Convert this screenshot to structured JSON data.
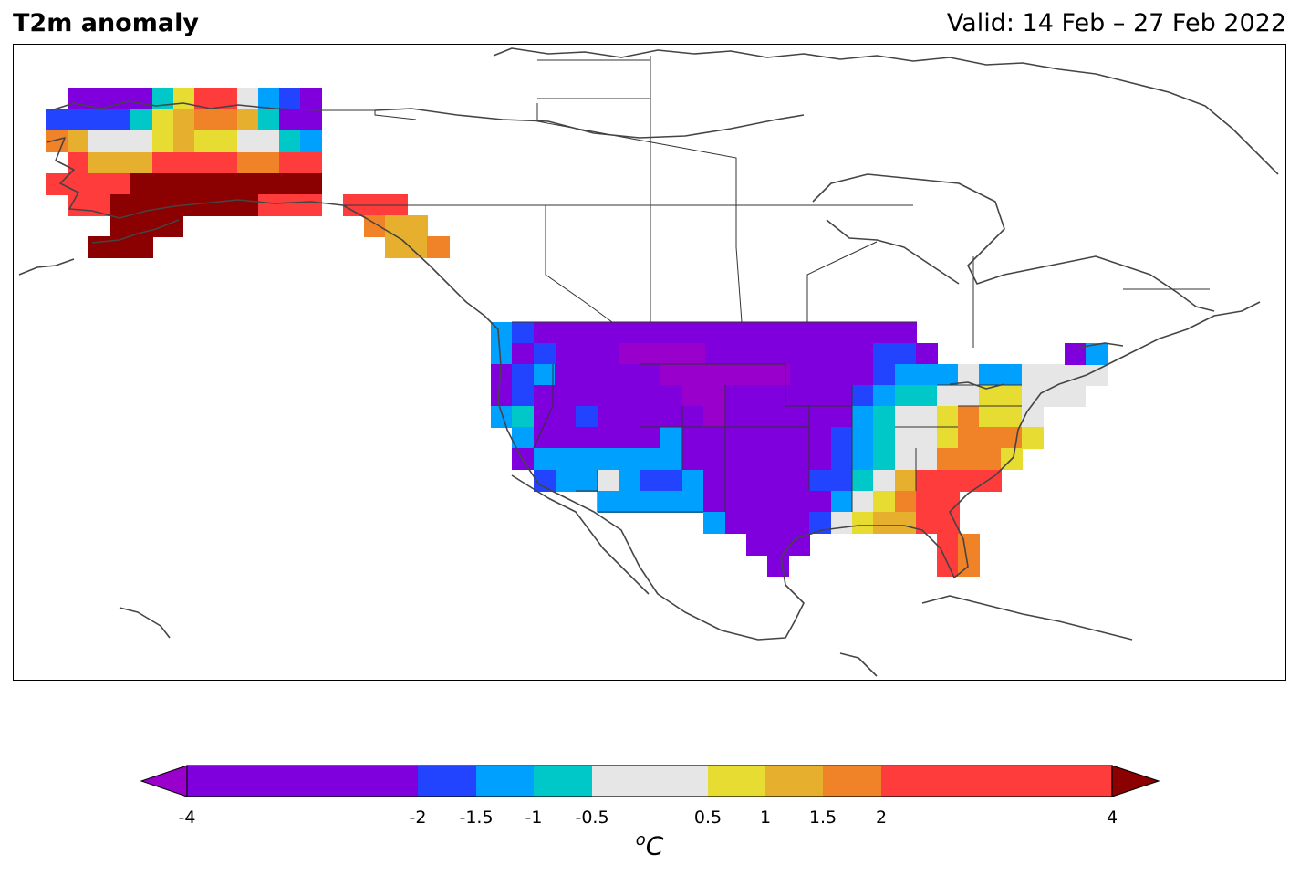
{
  "title": "T2m anomaly",
  "valid": "Valid: 14 Feb – 27 Feb 2022",
  "colorbar": {
    "unit_base": "C",
    "unit_sup": "o",
    "bounds": [
      "-4",
      "-2",
      "-1.5",
      "-1",
      "-0.5",
      "0.5",
      "1",
      "1.5",
      "2",
      "4"
    ],
    "colors": [
      "#7f00dd",
      "#2244ff",
      "#00a0ff",
      "#00c8c8",
      "#e6e6e6",
      "#e6dc32",
      "#e6af2d",
      "#f08228",
      "#ff3c3c"
    ],
    "under_color": "#9900cc",
    "over_color": "#8b0000"
  }
}
